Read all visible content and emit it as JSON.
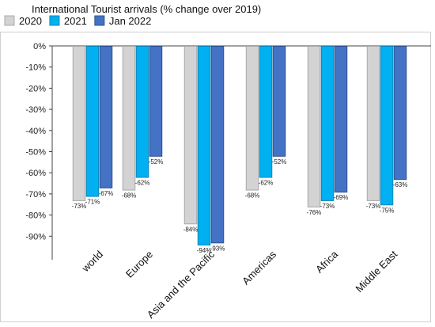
{
  "chart_data": {
    "type": "bar",
    "title": "International Tourist arrivals  (% change over 2019)",
    "xlabel": "",
    "ylabel": "",
    "ylim": [
      -100,
      0
    ],
    "yticks": [
      0,
      -10,
      -20,
      -30,
      -40,
      -50,
      -60,
      -70,
      -80,
      -90
    ],
    "ytick_labels": [
      "0%",
      "-10%",
      "-20%",
      "-30%",
      "-40%",
      "-50%",
      "-60%",
      "-70%",
      "-80%",
      "-90%"
    ],
    "categories": [
      "world",
      "Europe",
      "Asia and the Pacific",
      "Americas",
      "Africa",
      "Middle East"
    ],
    "series": [
      {
        "name": "2020",
        "color": "#d3d3d3",
        "stroke": "#a8a8a8",
        "values": [
          -73,
          -68,
          -84,
          -68,
          -76,
          -73
        ],
        "labels": [
          "-73%",
          "-68%",
          "-84%",
          "-68%",
          "-76%",
          "-73%"
        ]
      },
      {
        "name": "2021",
        "color": "#00b0f0",
        "stroke": "#0f86b8",
        "values": [
          -71,
          -62,
          -94,
          -62,
          -73,
          -75
        ],
        "labels": [
          "-71%",
          "-62%",
          "-94%",
          "-62%",
          "-73%",
          "-75%"
        ]
      },
      {
        "name": "Jan 2022",
        "color": "#4472c4",
        "stroke": "#2f528f",
        "values": [
          -67,
          -52,
          -93,
          -52,
          -69,
          -63
        ],
        "labels": [
          "-67%",
          "-52%",
          "-93%",
          "-52%",
          "-69%",
          "-63%"
        ]
      }
    ],
    "legend_position": "top-left",
    "grid": false
  }
}
